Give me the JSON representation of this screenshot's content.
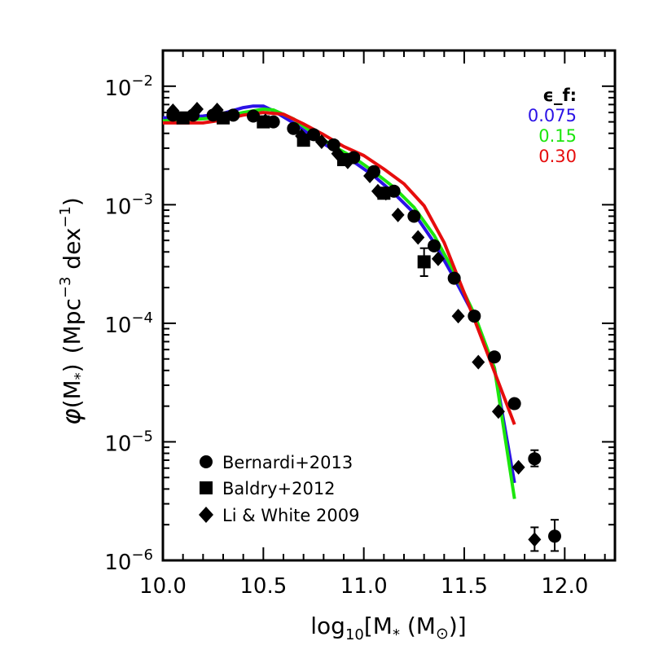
{
  "chart_data": {
    "type": "scatter",
    "xlabel": {
      "base": "log",
      "sub": "10",
      "mid": "[M",
      "subs": "*",
      "rest": " (M",
      "sun": "⊙",
      "end": ")]"
    },
    "ylabel": {
      "phi": "φ",
      "mpart": "(M",
      "subs": "*",
      "close": ")",
      "units_a": "(Mpc",
      "sup_a": "−3",
      "units_b": " dex",
      "sup_b": "−1",
      "units_c": ")"
    },
    "xlim": [
      10.0,
      12.25
    ],
    "ylim": [
      1e-06,
      0.02
    ],
    "yscale": "log",
    "x_ticks": [
      {
        "v": 10.0,
        "label": "10.0"
      },
      {
        "v": 10.5,
        "label": "10.5"
      },
      {
        "v": 11.0,
        "label": "11.0"
      },
      {
        "v": 11.5,
        "label": "11.5"
      },
      {
        "v": 12.0,
        "label": "12.0"
      }
    ],
    "y_ticks": [
      {
        "v": 1e-06,
        "base": "10",
        "exp": "−6"
      },
      {
        "v": 1e-05,
        "base": "10",
        "exp": "−5"
      },
      {
        "v": 0.0001,
        "base": "10",
        "exp": "−4"
      },
      {
        "v": 0.001,
        "base": "10",
        "exp": "−3"
      },
      {
        "v": 0.01,
        "base": "10",
        "exp": "−2"
      }
    ],
    "model_title": "ϵ_f:",
    "model_series": [
      {
        "name": "0.075",
        "color": "#2b12e6",
        "x": [
          10.0,
          10.1,
          10.2,
          10.3,
          10.4,
          10.45,
          10.5,
          10.55,
          10.65,
          10.75,
          10.85,
          10.95,
          11.05,
          11.15,
          11.25,
          11.35,
          11.45,
          11.55,
          11.65,
          11.75
        ],
        "y": [
          0.0054,
          0.0055,
          0.0056,
          0.0059,
          0.0066,
          0.0068,
          0.0068,
          0.0062,
          0.0049,
          0.0037,
          0.0029,
          0.0023,
          0.00175,
          0.00125,
          0.00085,
          0.00048,
          0.00024,
          0.000115,
          4.2e-05,
          4.5e-06
        ]
      },
      {
        "name": "0.15",
        "color": "#1ce60d",
        "x": [
          10.0,
          10.1,
          10.2,
          10.3,
          10.4,
          10.5,
          10.55,
          10.65,
          10.75,
          10.85,
          10.95,
          11.05,
          11.15,
          11.25,
          11.35,
          11.45,
          11.55,
          11.65,
          11.75
        ],
        "y": [
          0.0051,
          0.0052,
          0.0053,
          0.0055,
          0.006,
          0.0064,
          0.0063,
          0.0053,
          0.004,
          0.0031,
          0.0025,
          0.0019,
          0.0014,
          0.00095,
          0.00055,
          0.00027,
          0.00012,
          4.2e-05,
          3.3e-06
        ]
      },
      {
        "name": "0.30",
        "color": "#e60d0d",
        "x": [
          10.0,
          10.1,
          10.2,
          10.3,
          10.4,
          10.5,
          10.6,
          10.7,
          10.8,
          10.9,
          11.0,
          11.1,
          11.2,
          11.3,
          11.4,
          11.5,
          11.6,
          11.75
        ],
        "y": [
          0.0049,
          0.0049,
          0.0049,
          0.0052,
          0.0057,
          0.006,
          0.0058,
          0.0048,
          0.0039,
          0.0031,
          0.0026,
          0.002,
          0.0015,
          0.00098,
          0.00048,
          0.00018,
          6.5e-05,
          1.4e-05
        ]
      }
    ],
    "legend": [
      {
        "name": "Bernardi+2013",
        "marker": "circle"
      },
      {
        "name": "Baldry+2012",
        "marker": "square"
      },
      {
        "name": "Li & White 2009",
        "marker": "diamond"
      }
    ],
    "observations": [
      {
        "name": "Bernardi+2013",
        "marker": "circle",
        "points": [
          {
            "x": 10.05,
            "y": 0.0057
          },
          {
            "x": 10.15,
            "y": 0.0057
          },
          {
            "x": 10.25,
            "y": 0.0057
          },
          {
            "x": 10.35,
            "y": 0.0057
          },
          {
            "x": 10.45,
            "y": 0.0056
          },
          {
            "x": 10.55,
            "y": 0.005
          },
          {
            "x": 10.65,
            "y": 0.0044
          },
          {
            "x": 10.75,
            "y": 0.0039
          },
          {
            "x": 10.85,
            "y": 0.0032
          },
          {
            "x": 10.95,
            "y": 0.0025
          },
          {
            "x": 11.05,
            "y": 0.0019
          },
          {
            "x": 11.15,
            "y": 0.0013
          },
          {
            "x": 11.25,
            "y": 0.0008
          },
          {
            "x": 11.35,
            "y": 0.00045
          },
          {
            "x": 11.45,
            "y": 0.00024
          },
          {
            "x": 11.55,
            "y": 0.000115
          },
          {
            "x": 11.65,
            "y": 5.2e-05
          },
          {
            "x": 11.75,
            "y": 2.1e-05
          },
          {
            "x": 11.85,
            "y": 7.2e-06,
            "err": [
              6.2e-06,
              8.5e-06
            ]
          },
          {
            "x": 11.95,
            "y": 1.6e-06,
            "err": [
              1.2e-06,
              2.2e-06
            ]
          }
        ]
      },
      {
        "name": "Baldry+2012",
        "marker": "square",
        "points": [
          {
            "x": 10.1,
            "y": 0.0054
          },
          {
            "x": 10.3,
            "y": 0.0054
          },
          {
            "x": 10.5,
            "y": 0.005
          },
          {
            "x": 10.7,
            "y": 0.0035
          },
          {
            "x": 10.9,
            "y": 0.0024
          },
          {
            "x": 11.1,
            "y": 0.00125
          },
          {
            "x": 11.3,
            "y": 0.00033,
            "err": [
              0.00025,
              0.00043
            ]
          }
        ]
      },
      {
        "name": "Li & White 2009",
        "marker": "diamond",
        "points": [
          {
            "x": 10.05,
            "y": 0.0062
          },
          {
            "x": 10.17,
            "y": 0.0064
          },
          {
            "x": 10.27,
            "y": 0.0063
          },
          {
            "x": 10.51,
            "y": 0.0051
          },
          {
            "x": 10.69,
            "y": 0.0038
          },
          {
            "x": 10.79,
            "y": 0.0034
          },
          {
            "x": 10.87,
            "y": 0.0027
          },
          {
            "x": 10.92,
            "y": 0.0023
          },
          {
            "x": 11.03,
            "y": 0.00175
          },
          {
            "x": 11.07,
            "y": 0.0013
          },
          {
            "x": 11.11,
            "y": 0.00125
          },
          {
            "x": 11.17,
            "y": 0.00082
          },
          {
            "x": 11.27,
            "y": 0.00053
          },
          {
            "x": 11.37,
            "y": 0.00035
          },
          {
            "x": 11.47,
            "y": 0.000115
          },
          {
            "x": 11.57,
            "y": 4.7e-05
          },
          {
            "x": 11.67,
            "y": 1.8e-05
          },
          {
            "x": 11.77,
            "y": 6.1e-06
          },
          {
            "x": 11.85,
            "y": 1.5e-06,
            "err": [
              1.2e-06,
              1.9e-06
            ]
          }
        ]
      }
    ]
  }
}
